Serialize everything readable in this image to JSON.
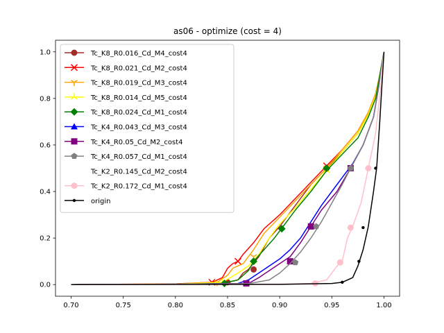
{
  "chart_data": {
    "type": "line",
    "title": "as06 - optimize (cost = 4)",
    "xlabel": "",
    "ylabel": "",
    "xlim": [
      0.685,
      1.015
    ],
    "ylim": [
      -0.05,
      1.05
    ],
    "xticks": [
      "0.70",
      "0.75",
      "0.80",
      "0.85",
      "0.90",
      "0.95",
      "1.00"
    ],
    "yticks": [
      "0.0",
      "0.2",
      "0.4",
      "0.6",
      "0.8",
      "1.0"
    ],
    "legend_position": "upper-left",
    "series": [
      {
        "name": "Tc_K8_R0.016_Cd_M4_cost4",
        "color": "#a52a2a",
        "marker": "circle",
        "points": [
          [
            0.7,
            0
          ],
          [
            0.8,
            0.002
          ],
          [
            0.84,
            0.005
          ],
          [
            0.85,
            0.01
          ],
          [
            0.86,
            0.02
          ],
          [
            0.865,
            0.05
          ],
          [
            0.87,
            0.065
          ],
          [
            0.88,
            0.12
          ],
          [
            0.89,
            0.2
          ],
          [
            0.9,
            0.25
          ],
          [
            0.91,
            0.31
          ],
          [
            0.92,
            0.37
          ],
          [
            0.93,
            0.43
          ],
          [
            0.945,
            0.5
          ],
          [
            0.96,
            0.57
          ],
          [
            0.975,
            0.65
          ],
          [
            0.985,
            0.73
          ],
          [
            0.992,
            0.8
          ],
          [
            0.996,
            0.9
          ],
          [
            1.0,
            1.0
          ]
        ],
        "markers": [
          [
            0.85,
            0.01
          ],
          [
            0.875,
            0.065
          ],
          [
            0.945,
            0.5
          ]
        ]
      },
      {
        "name": "Tc_K8_R0.021_Cd_M2_cost4",
        "color": "#ff0000",
        "marker": "x",
        "points": [
          [
            0.7,
            0
          ],
          [
            0.8,
            0.003
          ],
          [
            0.835,
            0.01
          ],
          [
            0.845,
            0.03
          ],
          [
            0.85,
            0.07
          ],
          [
            0.855,
            0.09
          ],
          [
            0.86,
            0.1
          ],
          [
            0.865,
            0.13
          ],
          [
            0.875,
            0.18
          ],
          [
            0.885,
            0.24
          ],
          [
            0.9,
            0.3
          ],
          [
            0.915,
            0.37
          ],
          [
            0.93,
            0.44
          ],
          [
            0.945,
            0.51
          ],
          [
            0.96,
            0.58
          ],
          [
            0.975,
            0.66
          ],
          [
            0.985,
            0.74
          ],
          [
            0.992,
            0.82
          ],
          [
            0.996,
            0.9
          ],
          [
            1.0,
            1.0
          ]
        ],
        "markers": [
          [
            0.835,
            0.01
          ],
          [
            0.86,
            0.1
          ],
          [
            0.945,
            0.51
          ]
        ]
      },
      {
        "name": "Tc_K8_R0.019_Cd_M3_cost4",
        "color": "#ffa500",
        "marker": "tri_down",
        "points": [
          [
            0.7,
            0
          ],
          [
            0.8,
            0.003
          ],
          [
            0.84,
            0.01
          ],
          [
            0.85,
            0.04
          ],
          [
            0.855,
            0.07
          ],
          [
            0.865,
            0.09
          ],
          [
            0.875,
            0.15
          ],
          [
            0.885,
            0.22
          ],
          [
            0.9,
            0.29
          ],
          [
            0.915,
            0.36
          ],
          [
            0.93,
            0.43
          ],
          [
            0.945,
            0.5
          ],
          [
            0.96,
            0.58
          ],
          [
            0.975,
            0.66
          ],
          [
            0.985,
            0.74
          ],
          [
            0.992,
            0.82
          ],
          [
            0.996,
            0.9
          ],
          [
            1.0,
            1.0
          ]
        ],
        "markers": [
          [
            0.84,
            0.01
          ],
          [
            0.875,
            0.12
          ],
          [
            0.945,
            0.5
          ]
        ]
      },
      {
        "name": "Tc_K8_R0.014_Cd_M5_cost4",
        "color": "#ffff00",
        "marker": "tri_up",
        "points": [
          [
            0.7,
            0
          ],
          [
            0.8,
            0.002
          ],
          [
            0.845,
            0.01
          ],
          [
            0.86,
            0.05
          ],
          [
            0.87,
            0.08
          ],
          [
            0.88,
            0.13
          ],
          [
            0.89,
            0.2
          ],
          [
            0.9,
            0.26
          ],
          [
            0.915,
            0.33
          ],
          [
            0.93,
            0.41
          ],
          [
            0.945,
            0.49
          ],
          [
            0.96,
            0.57
          ],
          [
            0.975,
            0.65
          ],
          [
            0.985,
            0.73
          ],
          [
            0.992,
            0.81
          ],
          [
            0.996,
            0.9
          ],
          [
            1.0,
            1.0
          ]
        ],
        "markers": [
          [
            0.845,
            0.01
          ],
          [
            0.875,
            0.1
          ],
          [
            0.945,
            0.49
          ]
        ]
      },
      {
        "name": "Tc_K8_R0.024_Cd_M1_cost4",
        "color": "#008000",
        "marker": "diamond",
        "points": [
          [
            0.7,
            0
          ],
          [
            0.8,
            0.002
          ],
          [
            0.845,
            0.005
          ],
          [
            0.86,
            0.02
          ],
          [
            0.87,
            0.06
          ],
          [
            0.875,
            0.1
          ],
          [
            0.885,
            0.15
          ],
          [
            0.895,
            0.2
          ],
          [
            0.905,
            0.26
          ],
          [
            0.915,
            0.32
          ],
          [
            0.93,
            0.4
          ],
          [
            0.945,
            0.49
          ],
          [
            0.96,
            0.56
          ],
          [
            0.975,
            0.63
          ],
          [
            0.985,
            0.72
          ],
          [
            0.992,
            0.8
          ],
          [
            0.996,
            0.9
          ],
          [
            1.0,
            1.0
          ]
        ],
        "markers": [
          [
            0.847,
            0.005
          ],
          [
            0.875,
            0.1
          ],
          [
            0.902,
            0.24
          ],
          [
            0.945,
            0.5
          ]
        ]
      },
      {
        "name": "Tc_K4_R0.043_Cd_M3_cost4",
        "color": "#0000ff",
        "marker": "triangle",
        "points": [
          [
            0.7,
            0
          ],
          [
            0.8,
            0.002
          ],
          [
            0.86,
            0.005
          ],
          [
            0.87,
            0.02
          ],
          [
            0.88,
            0.05
          ],
          [
            0.89,
            0.08
          ],
          [
            0.9,
            0.11
          ],
          [
            0.91,
            0.15
          ],
          [
            0.92,
            0.2
          ],
          [
            0.93,
            0.27
          ],
          [
            0.94,
            0.34
          ],
          [
            0.95,
            0.4
          ],
          [
            0.96,
            0.46
          ],
          [
            0.97,
            0.52
          ],
          [
            0.98,
            0.6
          ],
          [
            0.99,
            0.72
          ],
          [
            0.995,
            0.85
          ],
          [
            1.0,
            1.0
          ]
        ],
        "markers": []
      },
      {
        "name": "Tc_K4_R0.05_Cd_M2_cost4",
        "color": "#800080",
        "marker": "square",
        "points": [
          [
            0.7,
            0
          ],
          [
            0.8,
            0.002
          ],
          [
            0.87,
            0.005
          ],
          [
            0.88,
            0.03
          ],
          [
            0.89,
            0.06
          ],
          [
            0.9,
            0.09
          ],
          [
            0.91,
            0.12
          ],
          [
            0.92,
            0.18
          ],
          [
            0.93,
            0.25
          ],
          [
            0.94,
            0.32
          ],
          [
            0.955,
            0.4
          ],
          [
            0.968,
            0.5
          ],
          [
            0.98,
            0.6
          ],
          [
            0.99,
            0.72
          ],
          [
            0.995,
            0.85
          ],
          [
            1.0,
            1.0
          ]
        ],
        "markers": [
          [
            0.868,
            0.005
          ],
          [
            0.91,
            0.1
          ],
          [
            0.93,
            0.25
          ],
          [
            0.968,
            0.5
          ]
        ]
      },
      {
        "name": "Tc_K4_R0.057_Cd_M1_cost4",
        "color": "#808080",
        "marker": "pentagon",
        "points": [
          [
            0.7,
            0
          ],
          [
            0.8,
            0.002
          ],
          [
            0.87,
            0.004
          ],
          [
            0.89,
            0.02
          ],
          [
            0.9,
            0.05
          ],
          [
            0.91,
            0.09
          ],
          [
            0.92,
            0.14
          ],
          [
            0.93,
            0.2
          ],
          [
            0.94,
            0.27
          ],
          [
            0.95,
            0.35
          ],
          [
            0.96,
            0.43
          ],
          [
            0.968,
            0.5
          ],
          [
            0.98,
            0.6
          ],
          [
            0.99,
            0.72
          ],
          [
            0.995,
            0.85
          ],
          [
            1.0,
            1.0
          ]
        ],
        "markers": [
          [
            0.915,
            0.095
          ],
          [
            0.935,
            0.25
          ],
          [
            0.968,
            0.5
          ]
        ]
      },
      {
        "name": "Tc_K2_R0.145_Cd_M2_cost4",
        "color": "#ffffff",
        "marker": "none",
        "points": [
          [
            0.7,
            0
          ],
          [
            0.9,
            0.002
          ],
          [
            0.93,
            0.005
          ],
          [
            0.95,
            0.02
          ],
          [
            0.96,
            0.1
          ],
          [
            0.97,
            0.25
          ],
          [
            0.985,
            0.5
          ],
          [
            0.995,
            0.8
          ],
          [
            1.0,
            1.0
          ]
        ],
        "markers": []
      },
      {
        "name": "Tc_K2_R0.172_Cd_M1_cost4",
        "color": "#ffc0cb",
        "marker": "circle",
        "points": [
          [
            0.7,
            0
          ],
          [
            0.9,
            0.002
          ],
          [
            0.93,
            0.005
          ],
          [
            0.945,
            0.02
          ],
          [
            0.955,
            0.08
          ],
          [
            0.96,
            0.1
          ],
          [
            0.965,
            0.2
          ],
          [
            0.97,
            0.25
          ],
          [
            0.978,
            0.35
          ],
          [
            0.985,
            0.5
          ],
          [
            0.992,
            0.65
          ],
          [
            0.997,
            0.85
          ],
          [
            1.0,
            1.0
          ]
        ],
        "markers": [
          [
            0.934,
            0.005
          ],
          [
            0.958,
            0.095
          ],
          [
            0.968,
            0.245
          ],
          [
            0.985,
            0.5
          ]
        ]
      },
      {
        "name": "origin",
        "color": "#000000",
        "marker": "point",
        "points": [
          [
            0.7,
            0
          ],
          [
            0.9,
            0.001
          ],
          [
            0.95,
            0.005
          ],
          [
            0.96,
            0.01
          ],
          [
            0.97,
            0.03
          ],
          [
            0.975,
            0.08
          ],
          [
            0.98,
            0.15
          ],
          [
            0.985,
            0.25
          ],
          [
            0.99,
            0.4
          ],
          [
            0.993,
            0.5
          ],
          [
            0.996,
            0.7
          ],
          [
            0.998,
            0.85
          ],
          [
            1.0,
            1.0
          ]
        ],
        "markers": [
          [
            0.96,
            0.01
          ],
          [
            0.976,
            0.1
          ],
          [
            0.98,
            0.245
          ],
          [
            0.992,
            0.5
          ]
        ]
      }
    ]
  }
}
